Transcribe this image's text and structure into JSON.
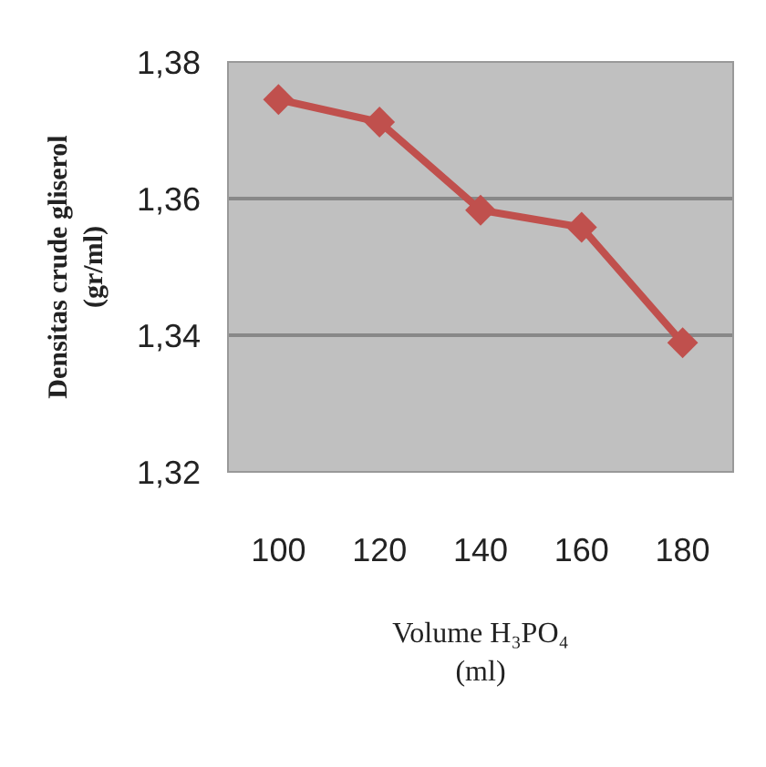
{
  "chart_data": {
    "type": "line",
    "xlabel": "Volume H₃PO₄\n(ml)",
    "ylabel": "Densitas crude gliserol\n(gr/ml)",
    "categories": [
      "100",
      "120",
      "140",
      "160",
      "180"
    ],
    "series": [
      {
        "color": "#c0504d",
        "values": [
          1.3745,
          1.3712,
          1.3583,
          1.3558,
          1.3389
        ]
      }
    ],
    "ylim": [
      1.32,
      1.38
    ],
    "yticks": [
      {
        "value": 1.32,
        "label": "1,32"
      },
      {
        "value": 1.34,
        "label": "1,34"
      },
      {
        "value": 1.36,
        "label": "1,36"
      },
      {
        "value": 1.38,
        "label": "1,38"
      }
    ],
    "grid": "y",
    "marker": "diamond",
    "line_style": "solid",
    "legend": false
  }
}
